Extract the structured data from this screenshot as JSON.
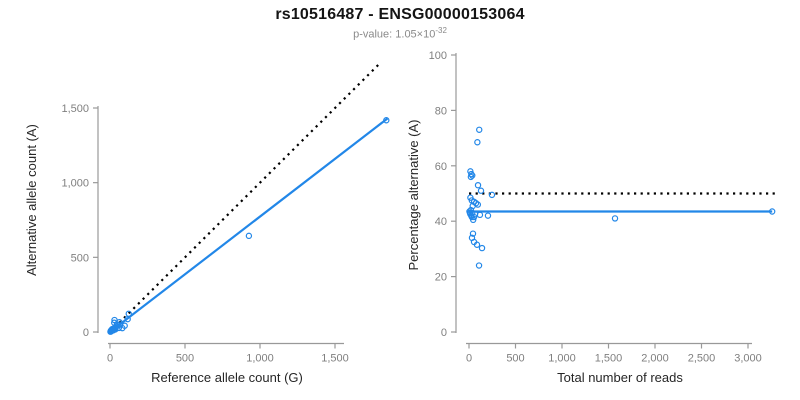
{
  "header": {
    "title": "rs10516487 - ENSG00000153064",
    "pvalue_label": "p-value: 1.05×10",
    "pvalue_exponent": "-32"
  },
  "colors": {
    "accent_blue": "#2287E8",
    "dotted_line": "#000000",
    "axis_line": "#999999",
    "tick_label": "#7f7f7f",
    "axis_title": "#262626",
    "title": "#141414",
    "subtitle": "#8a8a8a"
  },
  "chart_data": [
    {
      "type": "scatter",
      "panel": "left",
      "xlabel": "Reference allele count (G)",
      "ylabel": "Alternative allele count (A)",
      "xlim": [
        0,
        1850
      ],
      "ylim": [
        0,
        1500
      ],
      "xticks": [
        0,
        500,
        1000,
        1500
      ],
      "yticks": [
        0,
        500,
        1000,
        1500
      ],
      "grid": false,
      "legend": "none",
      "marker": "open-circle",
      "points": [
        [
          30,
          80
        ],
        [
          28,
          62
        ],
        [
          6,
          9
        ],
        [
          11,
          14
        ],
        [
          15,
          20
        ],
        [
          9,
          11
        ],
        [
          46,
          51
        ],
        [
          63,
          66
        ],
        [
          125,
          122
        ],
        [
          8,
          7
        ],
        [
          16,
          14
        ],
        [
          29,
          26
        ],
        [
          40,
          35
        ],
        [
          51,
          44
        ],
        [
          22,
          18
        ],
        [
          3,
          2
        ],
        [
          6,
          4
        ],
        [
          9,
          6
        ],
        [
          11,
          9
        ],
        [
          15,
          10
        ],
        [
          18,
          12
        ],
        [
          20,
          15
        ],
        [
          27,
          18
        ],
        [
          32,
          23
        ],
        [
          37,
          28
        ],
        [
          68,
          50
        ],
        [
          118,
          86
        ],
        [
          28,
          15
        ],
        [
          21,
          11
        ],
        [
          36,
          18
        ],
        [
          59,
          27
        ],
        [
          98,
          42
        ],
        [
          82,
          26
        ],
        [
          926,
          644
        ],
        [
          1842,
          1418
        ]
      ],
      "lines": [
        {
          "name": "identity-line",
          "style": "dotted",
          "color_key": "dotted_line",
          "from": [
            0,
            0
          ],
          "to": [
            1800,
            1800
          ]
        },
        {
          "name": "fit-line",
          "style": "solid",
          "color_key": "accent_blue",
          "from": [
            0,
            0
          ],
          "to": [
            1850,
            1430
          ]
        }
      ]
    },
    {
      "type": "scatter",
      "panel": "right",
      "xlabel": "Total number of reads",
      "ylabel": "Percentage alternative (A)",
      "xlim": [
        0,
        3300
      ],
      "ylim": [
        0,
        100
      ],
      "xticks": [
        0,
        500,
        1000,
        1500,
        2000,
        2500,
        3000
      ],
      "yticks": [
        0,
        20,
        40,
        60,
        80,
        100
      ],
      "grid": false,
      "legend": "none",
      "marker": "open-circle",
      "points": [
        [
          110,
          73
        ],
        [
          90,
          68.5
        ],
        [
          15,
          58
        ],
        [
          25,
          57
        ],
        [
          35,
          56.5
        ],
        [
          20,
          56
        ],
        [
          97,
          53
        ],
        [
          129,
          51
        ],
        [
          247,
          49.5
        ],
        [
          15,
          48.5
        ],
        [
          30,
          47.5
        ],
        [
          55,
          47
        ],
        [
          75,
          46.5
        ],
        [
          95,
          46
        ],
        [
          40,
          45.5
        ],
        [
          5,
          43.5
        ],
        [
          10,
          43
        ],
        [
          15,
          42.5
        ],
        [
          20,
          44
        ],
        [
          25,
          42
        ],
        [
          30,
          41.5
        ],
        [
          35,
          43
        ],
        [
          45,
          40.5
        ],
        [
          55,
          41.5
        ],
        [
          65,
          42.5
        ],
        [
          118,
          42.3
        ],
        [
          204,
          42
        ],
        [
          43,
          35.5
        ],
        [
          32,
          34
        ],
        [
          54,
          32.5
        ],
        [
          86,
          31.5
        ],
        [
          140,
          30.3
        ],
        [
          108,
          24
        ],
        [
          1570,
          41
        ],
        [
          3260,
          43.5
        ]
      ],
      "lines": [
        {
          "name": "null-line",
          "style": "dotted",
          "color_key": "dotted_line",
          "from": [
            0,
            50
          ],
          "to": [
            3300,
            50
          ]
        },
        {
          "name": "fit-line",
          "style": "solid",
          "color_key": "accent_blue",
          "from": [
            0,
            43.5
          ],
          "to": [
            3260,
            43.5
          ]
        }
      ]
    }
  ]
}
